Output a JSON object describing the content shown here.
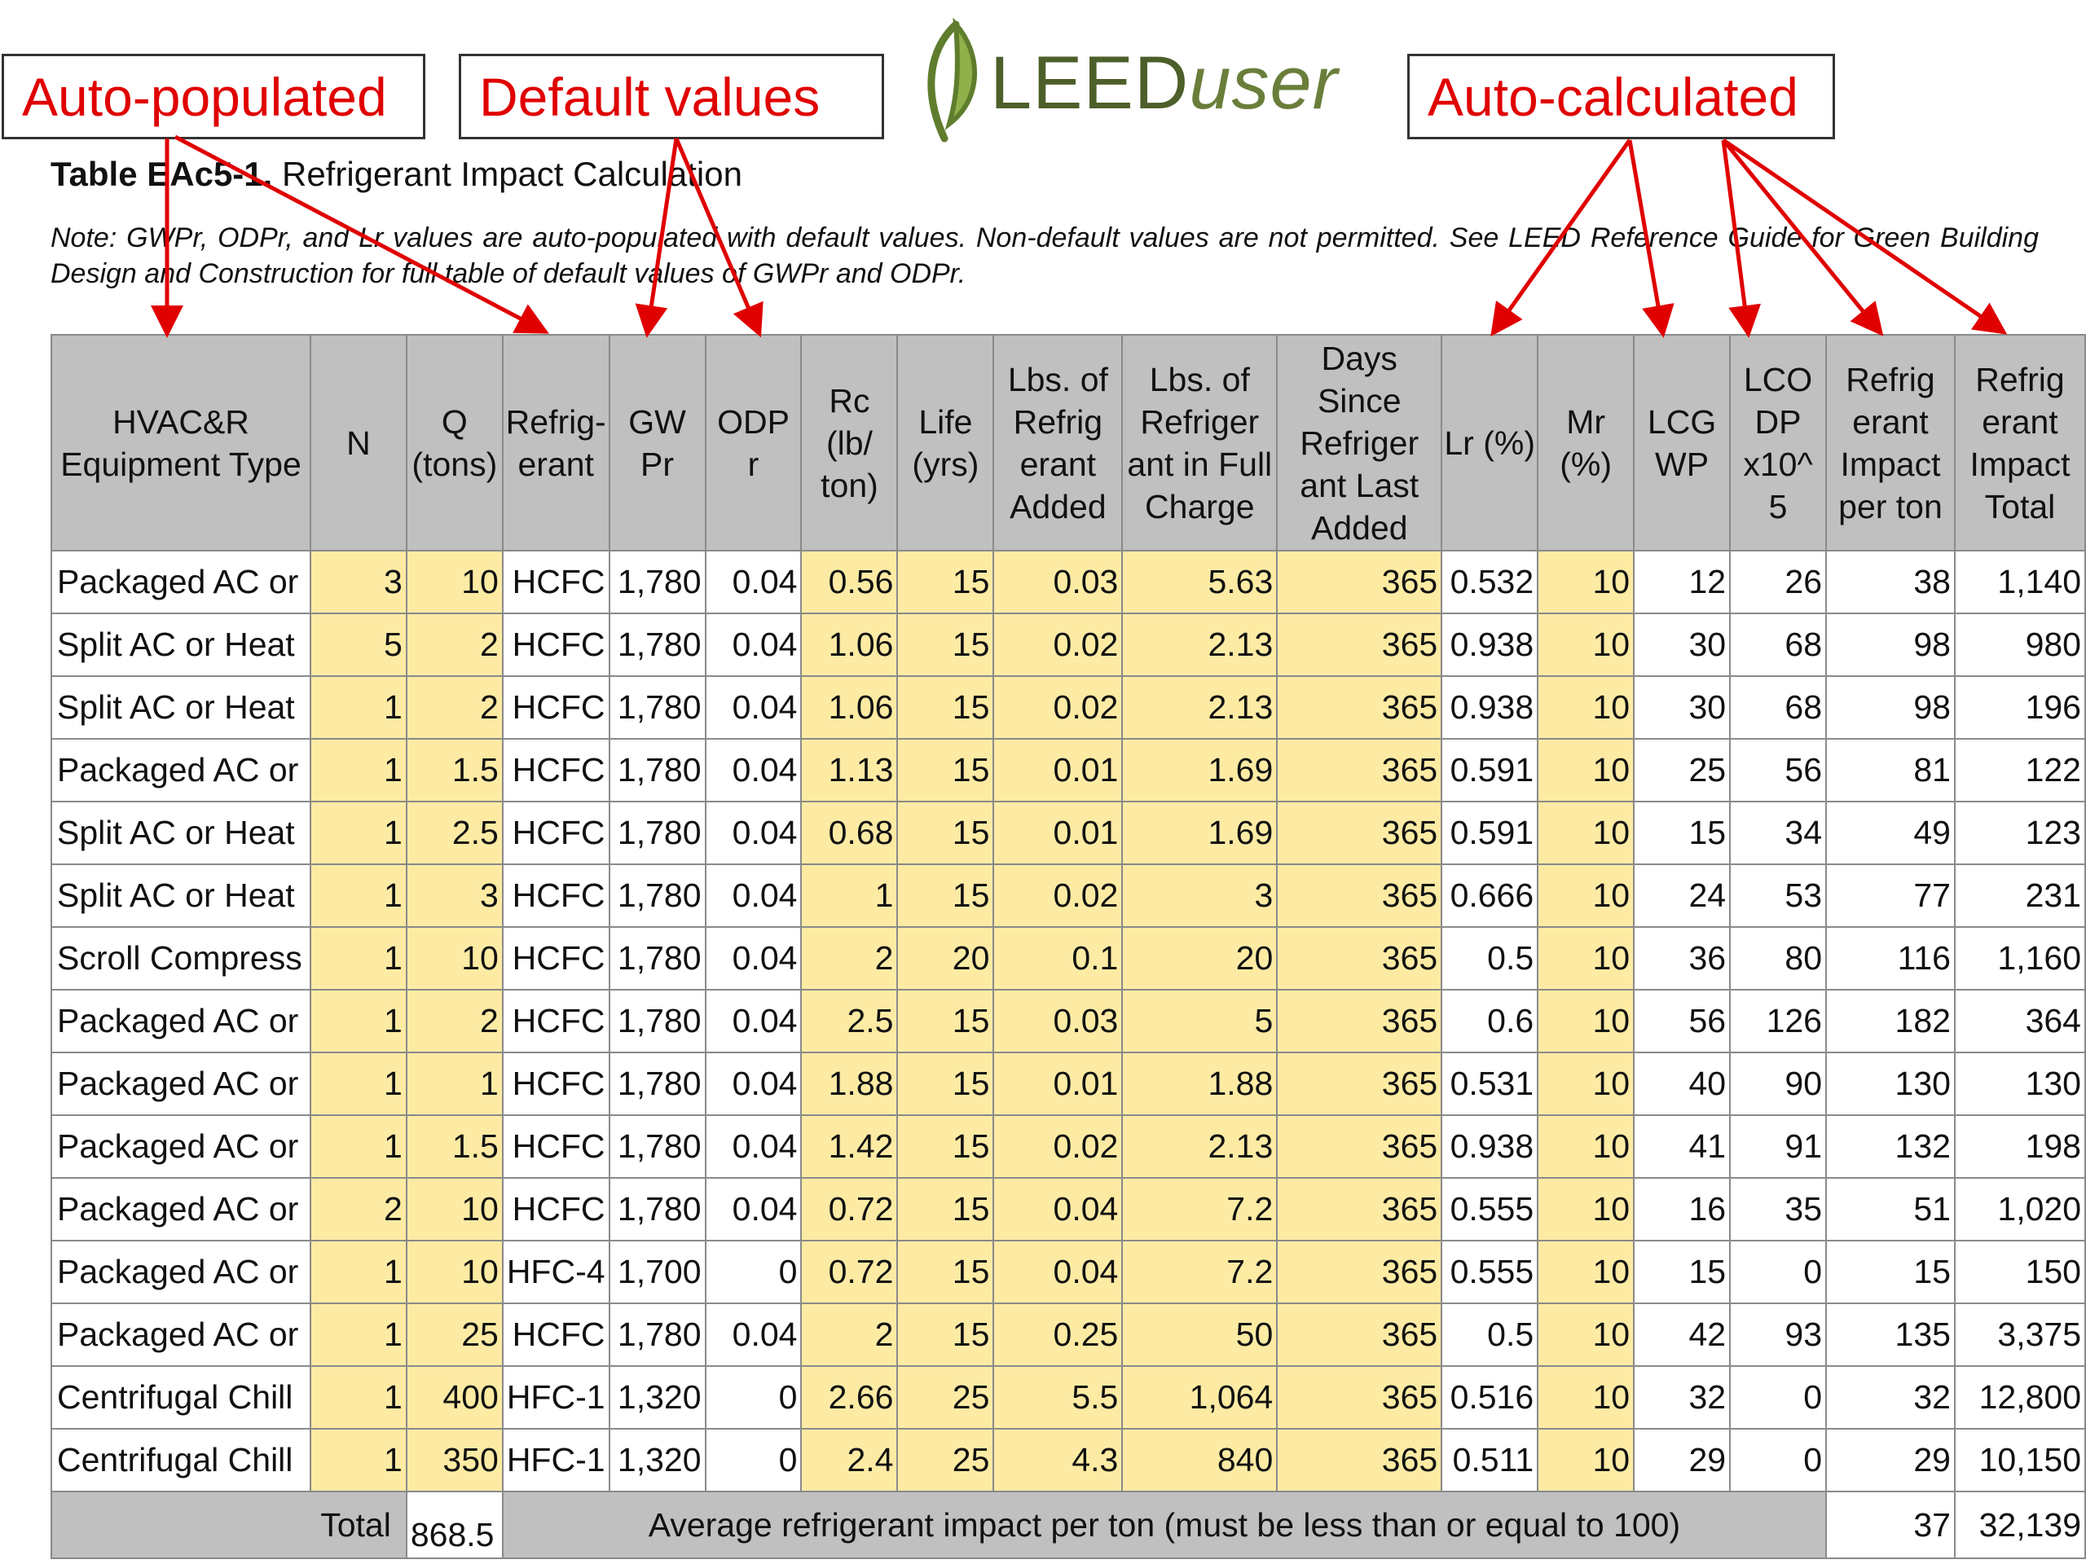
{
  "callouts": {
    "auto_populated": "Auto-populated",
    "default_values": "Default values",
    "auto_calculated": "Auto-calculated"
  },
  "logo": {
    "part1": "LEED",
    "part2": "user"
  },
  "table_title": {
    "bold": "Table EAc5-1.",
    "rest": " Refrigerant Impact Calculation"
  },
  "note": "Note: GWPr, ODPr, and Lr values are auto-populated with default values. Non-default values are not permitted. See LEED Reference Guide for Green Building Design and Construction for full table of default values of GWPr and ODPr.",
  "colors": {
    "callout_text": "#e00000",
    "arrow": "#e00000",
    "header_bg": "#c0c0c0",
    "input_cell": "#fdeba4",
    "logo_green": "#4d5f2a"
  },
  "headers": [
    "HVAC&R Equipment Type",
    "N",
    "Q (tons)",
    "Refrig- erant",
    "GW Pr",
    "ODP r",
    "Rc (lb/ ton)",
    "Life (yrs)",
    "Lbs. of Refrig erant Added",
    "Lbs. of Refriger ant in Full Charge",
    "Days Since Refriger ant Last Added",
    "Lr (%)",
    "Mr (%)",
    "LCG WP",
    "LCO DP x10^ 5",
    "Refrig erant Impact per ton",
    "Refrig erant Impact Total"
  ],
  "rows": [
    [
      "Packaged AC or",
      "3",
      "10",
      "HCFC",
      "1,780",
      "0.04",
      "0.56",
      "15",
      "0.03",
      "5.63",
      "365",
      "0.532",
      "10",
      "12",
      "26",
      "38",
      "1,140"
    ],
    [
      "Split AC or Heat",
      "5",
      "2",
      "HCFC",
      "1,780",
      "0.04",
      "1.06",
      "15",
      "0.02",
      "2.13",
      "365",
      "0.938",
      "10",
      "30",
      "68",
      "98",
      "980"
    ],
    [
      "Split AC or Heat",
      "1",
      "2",
      "HCFC",
      "1,780",
      "0.04",
      "1.06",
      "15",
      "0.02",
      "2.13",
      "365",
      "0.938",
      "10",
      "30",
      "68",
      "98",
      "196"
    ],
    [
      "Packaged AC or",
      "1",
      "1.5",
      "HCFC",
      "1,780",
      "0.04",
      "1.13",
      "15",
      "0.01",
      "1.69",
      "365",
      "0.591",
      "10",
      "25",
      "56",
      "81",
      "122"
    ],
    [
      "Split AC or Heat",
      "1",
      "2.5",
      "HCFC",
      "1,780",
      "0.04",
      "0.68",
      "15",
      "0.01",
      "1.69",
      "365",
      "0.591",
      "10",
      "15",
      "34",
      "49",
      "123"
    ],
    [
      "Split AC or Heat",
      "1",
      "3",
      "HCFC",
      "1,780",
      "0.04",
      "1",
      "15",
      "0.02",
      "3",
      "365",
      "0.666",
      "10",
      "24",
      "53",
      "77",
      "231"
    ],
    [
      "Scroll Compress",
      "1",
      "10",
      "HCFC",
      "1,780",
      "0.04",
      "2",
      "20",
      "0.1",
      "20",
      "365",
      "0.5",
      "10",
      "36",
      "80",
      "116",
      "1,160"
    ],
    [
      "Packaged AC or",
      "1",
      "2",
      "HCFC",
      "1,780",
      "0.04",
      "2.5",
      "15",
      "0.03",
      "5",
      "365",
      "0.6",
      "10",
      "56",
      "126",
      "182",
      "364"
    ],
    [
      "Packaged AC or",
      "1",
      "1",
      "HCFC",
      "1,780",
      "0.04",
      "1.88",
      "15",
      "0.01",
      "1.88",
      "365",
      "0.531",
      "10",
      "40",
      "90",
      "130",
      "130"
    ],
    [
      "Packaged AC or",
      "1",
      "1.5",
      "HCFC",
      "1,780",
      "0.04",
      "1.42",
      "15",
      "0.02",
      "2.13",
      "365",
      "0.938",
      "10",
      "41",
      "91",
      "132",
      "198"
    ],
    [
      "Packaged AC or",
      "2",
      "10",
      "HCFC",
      "1,780",
      "0.04",
      "0.72",
      "15",
      "0.04",
      "7.2",
      "365",
      "0.555",
      "10",
      "16",
      "35",
      "51",
      "1,020"
    ],
    [
      "Packaged AC or",
      "1",
      "10",
      "HFC-4",
      "1,700",
      "0",
      "0.72",
      "15",
      "0.04",
      "7.2",
      "365",
      "0.555",
      "10",
      "15",
      "0",
      "15",
      "150"
    ],
    [
      "Packaged AC or",
      "1",
      "25",
      "HCFC",
      "1,780",
      "0.04",
      "2",
      "15",
      "0.25",
      "50",
      "365",
      "0.5",
      "10",
      "42",
      "93",
      "135",
      "3,375"
    ],
    [
      "Centrifugal Chill",
      "1",
      "400",
      "HFC-1",
      "1,320",
      "0",
      "2.66",
      "25",
      "5.5",
      "1,064",
      "365",
      "0.516",
      "10",
      "32",
      "0",
      "32",
      "12,800"
    ],
    [
      "Centrifugal Chill",
      "1",
      "350",
      "HFC-1",
      "1,320",
      "0",
      "2.4",
      "25",
      "4.3",
      "840",
      "365",
      "0.511",
      "10",
      "29",
      "0",
      "29",
      "10,150"
    ]
  ],
  "footer": {
    "total_label": "Total",
    "total_tons": "868.5",
    "avg_label": "Average refrigerant impact per ton (must be less than or equal to 100)",
    "avg_value": "37",
    "grand_total": "32,139"
  }
}
